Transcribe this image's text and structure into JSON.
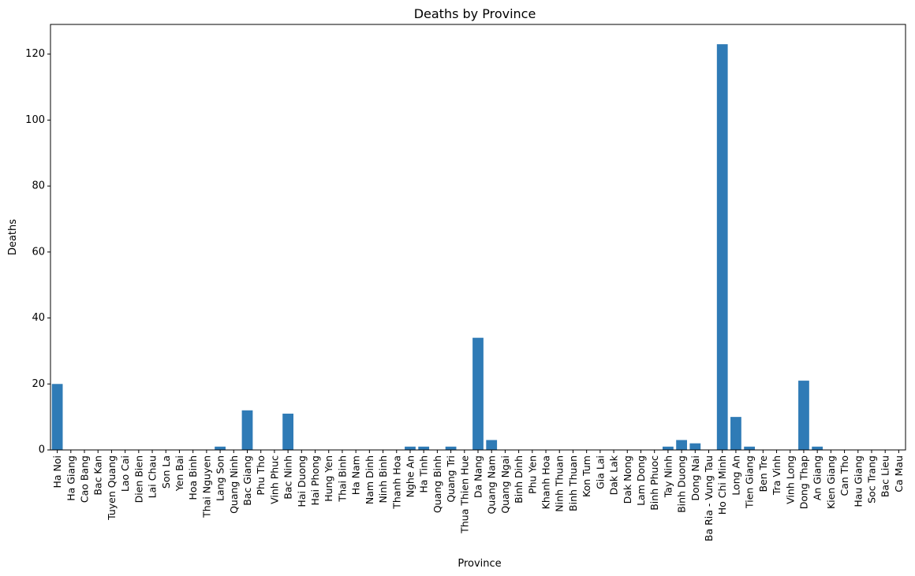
{
  "chart_data": {
    "type": "bar",
    "title": "Deaths by Province",
    "xlabel": "Province",
    "ylabel": "Deaths",
    "ylim": [
      0,
      129
    ],
    "yticks": [
      0,
      20,
      40,
      60,
      80,
      100,
      120
    ],
    "grid": false,
    "bar_color": "#2f7bb6",
    "categories": [
      "Ha Noi",
      "Ha Giang",
      "Cao Bang",
      "Bac Kan",
      "Tuyen Quang",
      "Lao Cai",
      "Dien Bien",
      "Lai Chau",
      "Son La",
      "Yen Bai",
      "Hoa Binh",
      "Thai Nguyen",
      "Lang Son",
      "Quang Ninh",
      "Bac Giang",
      "Phu Tho",
      "Vinh Phuc",
      "Bac Ninh",
      "Hai Duong",
      "Hai Phong",
      "Hung Yen",
      "Thai Binh",
      "Ha Nam",
      "Nam Dinh",
      "Ninh Binh",
      "Thanh Hoa",
      "Nghe An",
      "Ha Tinh",
      "Quang Binh",
      "Quang Tri",
      "Thua Thien Hue",
      "Da Nang",
      "Quang Nam",
      "Quang Ngai",
      "Binh Dinh",
      "Phu Yen",
      "Khanh Hoa",
      "Ninh Thuan",
      "Binh Thuan",
      "Kon Tum",
      "Gia Lai",
      "Dak Lak",
      "Dak Nong",
      "Lam Dong",
      "Binh Phuoc",
      "Tay Ninh",
      "Binh Duong",
      "Dong Nai",
      "Ba Ria - Vung Tau",
      "Ho Chi Minh",
      "Long An",
      "Tien Giang",
      "Ben Tre",
      "Tra Vinh",
      "Vinh Long",
      "Dong Thap",
      "An Giang",
      "Kien Giang",
      "Can Tho",
      "Hau Giang",
      "Soc Trang",
      "Bac Lieu",
      "Ca Mau"
    ],
    "values": [
      20,
      0,
      0,
      0,
      0,
      0,
      0,
      0,
      0,
      0,
      0,
      0,
      1,
      0,
      12,
      0,
      0,
      11,
      0,
      0,
      0,
      0,
      0,
      0,
      0,
      0,
      1,
      1,
      0,
      1,
      0,
      34,
      3,
      0,
      0,
      0,
      0,
      0,
      0,
      0,
      0,
      0,
      0,
      0,
      0,
      1,
      3,
      2,
      0,
      123,
      10,
      1,
      0,
      0,
      0,
      21,
      1,
      0,
      0,
      0,
      0,
      0,
      0
    ]
  }
}
